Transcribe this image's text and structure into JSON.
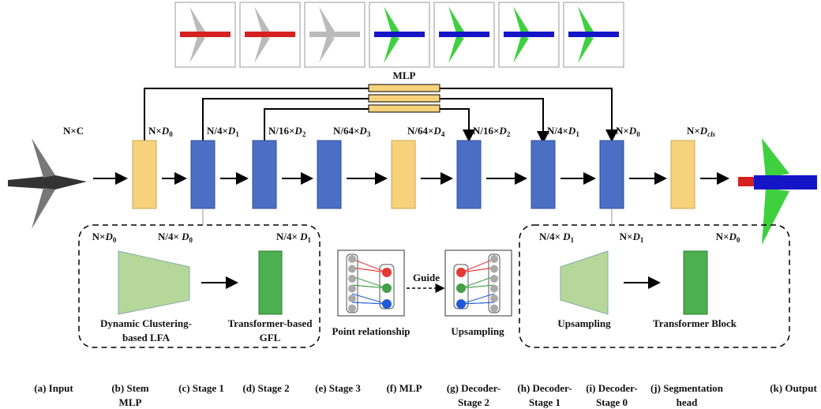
{
  "mlp_label": "MLP",
  "input_dim": {
    "pre": "N×C"
  },
  "dims": [
    {
      "pre": "N×",
      "var": "D",
      "sub": "0"
    },
    {
      "pre": "N/4×",
      "var": "D",
      "sub": "1"
    },
    {
      "pre": "N/16×",
      "var": "D",
      "sub": "2"
    },
    {
      "pre": "N/64×",
      "var": "D",
      "sub": "3"
    },
    {
      "pre": "N/64×",
      "var": "D",
      "sub": "4"
    },
    {
      "pre": "N/16×",
      "var": "D",
      "sub": "2"
    },
    {
      "pre": "N/4×",
      "var": "D",
      "sub": "1"
    },
    {
      "pre": "N×",
      "var": "D",
      "sub": "0"
    },
    {
      "pre": "N×",
      "var": "D",
      "sub": "cls"
    }
  ],
  "encoder_inset": {
    "dims": [
      {
        "pre": "N×",
        "var": "D",
        "sub": "0"
      },
      {
        "pre": "N/4× ",
        "var": "D",
        "sub": "0"
      },
      {
        "pre": "N/4× ",
        "var": "D",
        "sub": "1"
      }
    ],
    "lfa_label": [
      "Dynamic Clustering-",
      "based LFA"
    ],
    "gfl_label": [
      "Transformer-based",
      "GFL"
    ]
  },
  "guide": {
    "left_label": "Point relationship",
    "arrow_label": "Guide",
    "right_label": "Upsampling"
  },
  "decoder_inset": {
    "dims": [
      {
        "pre": "N/4× ",
        "var": "D",
        "sub": "1"
      },
      {
        "pre": "N×",
        "var": "D",
        "sub": "1"
      },
      {
        "pre": "N×",
        "var": "D",
        "sub": "0"
      }
    ],
    "up_label": [
      "Upsampling"
    ],
    "tb_label": [
      "Transformer Block"
    ]
  },
  "captions": [
    [
      "(a) Input"
    ],
    [
      "(b) Stem",
      "MLP"
    ],
    [
      "(c) Stage 1"
    ],
    [
      "(d) Stage 2"
    ],
    [
      "(e) Stage 3"
    ],
    [
      "(f) MLP"
    ],
    [
      "(g) Decoder-",
      "Stage 2"
    ],
    [
      "(h) Decoder-",
      "Stage 1"
    ],
    [
      "(i) Decoder-",
      "Stage 0"
    ],
    [
      "(j) Segmentation",
      "head"
    ],
    [
      "(k) Output"
    ]
  ]
}
